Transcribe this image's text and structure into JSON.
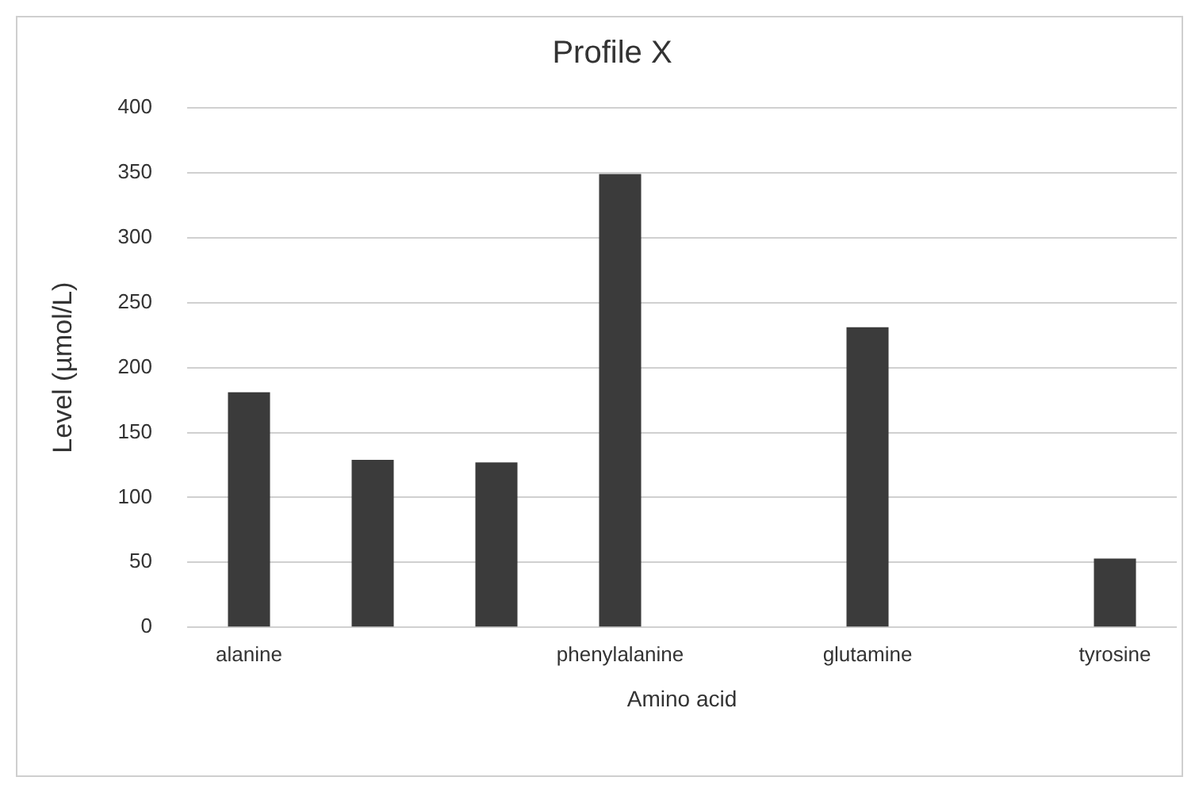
{
  "chart_data": {
    "type": "bar",
    "title": "Profile X",
    "xlabel": "Amino acid",
    "ylabel": "Level (µmol/L)",
    "categories": [
      "alanine",
      null,
      null,
      "phenylalanine",
      null,
      "glutamine",
      null,
      "tyrosine"
    ],
    "values": [
      181,
      129,
      127,
      349,
      null,
      231,
      null,
      53
    ],
    "color": "#3b3b3b",
    "ylim": [
      0,
      400
    ],
    "yticks": [
      0,
      50,
      100,
      150,
      200,
      250,
      300,
      350,
      400
    ],
    "grid": "y",
    "legend": false
  }
}
